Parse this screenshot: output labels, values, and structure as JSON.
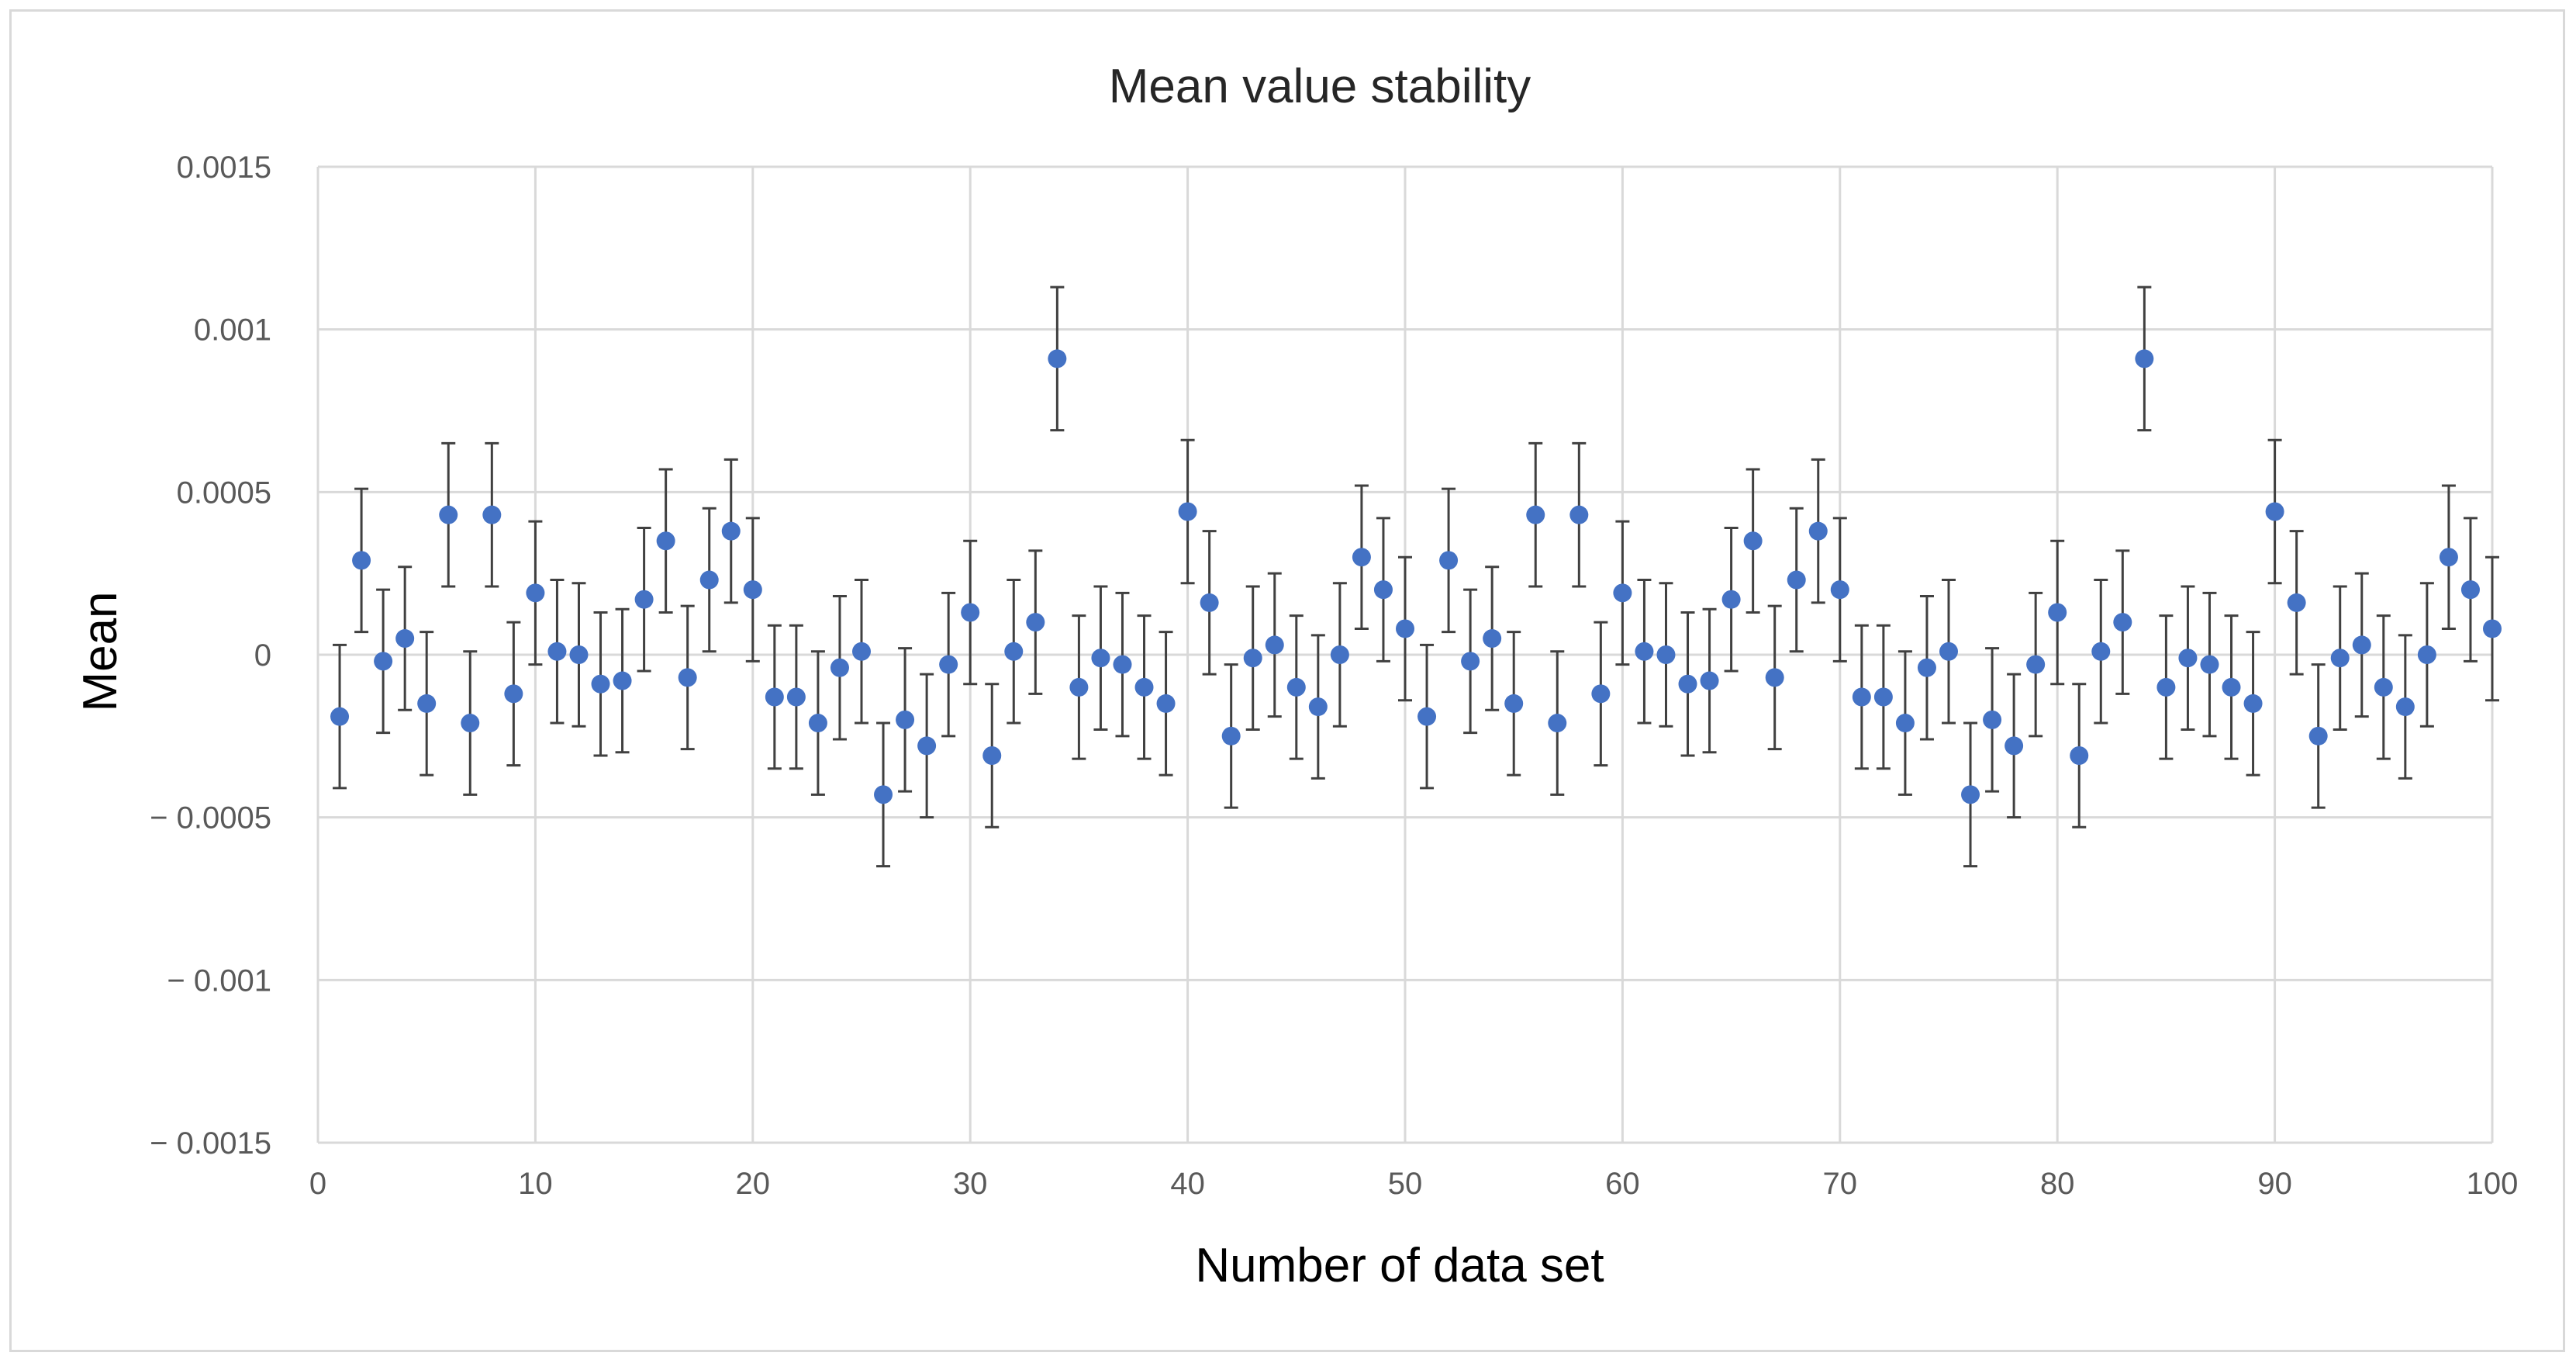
{
  "chart_data": {
    "type": "scatter",
    "title": "Mean value stability",
    "xlabel": "Number of data set",
    "ylabel": "Mean",
    "xlim": [
      0,
      100
    ],
    "ylim": [
      -0.0015,
      0.0015
    ],
    "x_ticks": [
      0,
      10,
      20,
      30,
      40,
      50,
      60,
      70,
      80,
      90,
      100
    ],
    "x_tick_labels": [
      "0",
      "10",
      "20",
      "30",
      "40",
      "50",
      "60",
      "70",
      "80",
      "90",
      "100"
    ],
    "y_ticks": [
      0.0015,
      0.001,
      0.0005,
      0,
      -0.0005,
      -0.001,
      -0.0015
    ],
    "y_tick_labels": [
      "0.0015",
      "0.001",
      "0.0005",
      "0",
      "− 0.0005",
      "− 0.001",
      "− 0.0015"
    ],
    "grid": true,
    "marker_color": "#4472c4",
    "error_bar_color": "#404040",
    "error_bar_halfwidth": 0.00022,
    "series": [
      {
        "name": "Mean",
        "x": [
          1,
          2,
          3,
          4,
          5,
          6,
          7,
          8,
          9,
          10,
          11,
          12,
          13,
          14,
          15,
          16,
          17,
          18,
          19,
          20,
          21,
          22,
          23,
          24,
          25,
          26,
          27,
          28,
          29,
          30,
          31,
          32,
          33,
          34,
          35,
          36,
          37,
          38,
          39,
          40,
          41,
          42,
          43,
          44,
          45,
          46,
          47,
          48,
          49,
          50,
          51,
          52,
          53,
          54,
          55,
          56,
          57,
          58,
          59,
          60,
          61,
          62,
          63,
          64,
          65,
          66,
          67,
          68,
          69,
          70,
          71,
          72,
          73,
          74,
          75,
          76,
          77,
          78,
          79,
          80,
          81,
          82,
          83,
          84,
          85,
          86,
          87,
          88,
          89,
          90,
          91,
          92,
          93,
          94,
          95,
          96,
          97,
          98,
          99,
          100
        ],
        "values": [
          -0.00019,
          0.00029,
          -2e-05,
          5e-05,
          -0.00015,
          0.00043,
          -0.00021,
          0.00043,
          -0.00012,
          0.00019,
          1e-05,
          0.0,
          -9e-05,
          -8e-05,
          0.00017,
          0.00035,
          -7e-05,
          0.00023,
          0.00038,
          0.0002,
          -0.00013,
          -0.00013,
          -0.00021,
          -4e-05,
          1e-05,
          -0.00043,
          -0.0002,
          -0.00028,
          -3e-05,
          0.00013,
          -0.00031,
          1e-05,
          0.0001,
          0.00091,
          -0.0001,
          -1e-05,
          -3e-05,
          -0.0001,
          -0.00015,
          0.00044,
          0.00016,
          -0.00025,
          -1e-05,
          3e-05,
          -0.0001,
          -0.00016,
          0.0,
          0.0003,
          0.0002,
          8e-05,
          -0.00019,
          0.00029,
          -2e-05,
          5e-05,
          -0.00015,
          0.00043,
          -0.00021,
          0.00043,
          -0.00012,
          0.00019,
          1e-05,
          0.0,
          -9e-05,
          -8e-05,
          0.00017,
          0.00035,
          -7e-05,
          0.00023,
          0.00038,
          0.0002,
          -0.00013,
          -0.00013,
          -0.00021,
          -4e-05,
          1e-05,
          -0.00043,
          -0.0002,
          -0.00028,
          -3e-05,
          0.00013,
          -0.00031,
          1e-05,
          0.0001,
          0.00091,
          -0.0001,
          -1e-05,
          -3e-05,
          -0.0001,
          -0.00015,
          0.00044,
          0.00016,
          -0.00025,
          -1e-05,
          3e-05,
          -0.0001,
          -0.00016,
          0.0,
          0.0003,
          0.0002,
          8e-05
        ]
      }
    ]
  }
}
